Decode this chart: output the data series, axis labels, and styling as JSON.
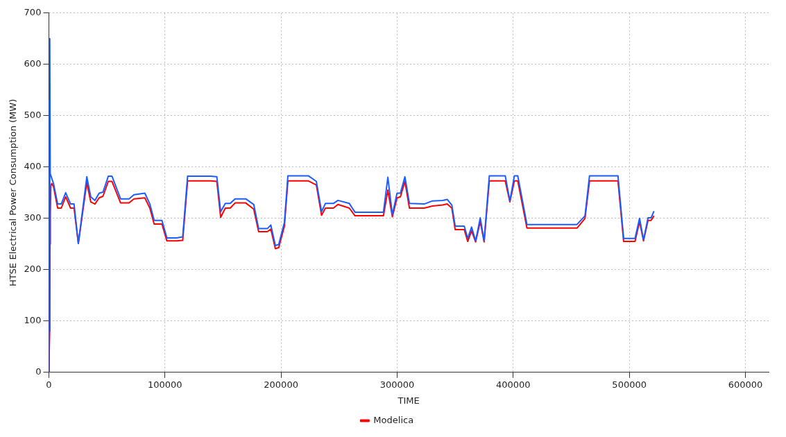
{
  "chart_data": {
    "type": "line",
    "xlabel": "TIME",
    "ylabel": "HTSE Electrical Power Consumption (MW)",
    "xlim": [
      0,
      620000
    ],
    "xticks": [
      0,
      100000,
      200000,
      300000,
      400000,
      500000,
      600000
    ],
    "ylim": [
      0,
      700
    ],
    "yticks": [
      0,
      100,
      200,
      300,
      400,
      500,
      600,
      700
    ],
    "grid": true,
    "legend": "bottom",
    "marker": "none",
    "line_style": "solid",
    "series": [
      {
        "color": "#1a5cff",
        "x": [
          0,
          300,
          600,
          800,
          1200,
          4000,
          7600,
          10700,
          14500,
          18700,
          21700,
          25400,
          32700,
          36100,
          39700,
          43300,
          46600,
          51200,
          54400,
          61800,
          69100,
          73300,
          82700,
          87000,
          90700,
          97400,
          101700,
          110000,
          115300,
          119500,
          139500,
          144700,
          148000,
          152000,
          156200,
          160400,
          169600,
          176500,
          180700,
          188200,
          191200,
          195100,
          198000,
          202900,
          205900,
          223500,
          230400,
          234900,
          238200,
          245100,
          249000,
          258800,
          263700,
          288200,
          292000,
          295900,
          299900,
          302800,
          306700,
          310600,
          323400,
          330400,
          339200,
          343100,
          347100,
          350000,
          357800,
          360800,
          364100,
          367600,
          371600,
          374900,
          379400,
          393100,
          397100,
          401000,
          403900,
          411800,
          454900,
          461800,
          465700,
          490200,
          495100,
          504900,
          508800,
          512200,
          516100,
          518700,
          521200
        ],
        "values": [
          0,
          530,
          80,
          650,
          387,
          368,
          328,
          328,
          350,
          328,
          328,
          251,
          381,
          342,
          335,
          349,
          351,
          382,
          382,
          338,
          338,
          346,
          349,
          328,
          296,
          296,
          262,
          262,
          264,
          382,
          382,
          381,
          313,
          329,
          329,
          338,
          338,
          327,
          280,
          280,
          287,
          247,
          249,
          292,
          383,
          383,
          372,
          313,
          329,
          329,
          335,
          329,
          312,
          312,
          380,
          307,
          349,
          349,
          381,
          329,
          328,
          334,
          335,
          337,
          326,
          285,
          285,
          261,
          283,
          256,
          301,
          256,
          383,
          383,
          334,
          383,
          383,
          288,
          288,
          305,
          383,
          383,
          261,
          261,
          300,
          258,
          301,
          301,
          314
        ]
      },
      {
        "name": "Modelica",
        "color": "#ff0000",
        "x": [
          0,
          700,
          1000,
          1300,
          1700,
          2500,
          4000,
          7600,
          10700,
          14500,
          18700,
          21700,
          25400,
          32700,
          36100,
          39700,
          43300,
          46600,
          51200,
          54400,
          61800,
          69100,
          73300,
          82700,
          87000,
          90700,
          97400,
          101700,
          110000,
          115300,
          119500,
          139500,
          144700,
          148000,
          152000,
          156200,
          160400,
          169600,
          176500,
          180700,
          188200,
          191200,
          195100,
          198000,
          202900,
          205900,
          223500,
          230400,
          234900,
          238200,
          245100,
          249000,
          258800,
          263700,
          288200,
          292000,
          295900,
          299900,
          302800,
          306700,
          310600,
          323400,
          330400,
          339200,
          343100,
          347100,
          350000,
          357800,
          360800,
          364100,
          367600,
          371600,
          374900,
          379400,
          393100,
          397100,
          401000,
          403900,
          411800,
          454900,
          461800,
          465700,
          490200,
          495100,
          504900,
          508800,
          512200,
          516100,
          518700,
          521200
        ],
        "values": [
          0,
          77,
          250,
          310,
          363,
          368,
          362,
          320,
          320,
          342,
          320,
          320,
          251,
          370,
          332,
          328,
          340,
          343,
          372,
          372,
          330,
          330,
          338,
          340,
          320,
          289,
          289,
          256,
          256,
          257,
          373,
          373,
          372,
          302,
          320,
          320,
          330,
          330,
          318,
          274,
          274,
          279,
          241,
          243,
          285,
          373,
          373,
          365,
          306,
          320,
          320,
          327,
          320,
          305,
          305,
          355,
          303,
          340,
          342,
          372,
          320,
          320,
          324,
          326,
          328,
          320,
          278,
          278,
          255,
          276,
          254,
          294,
          254,
          373,
          373,
          332,
          373,
          373,
          281,
          281,
          300,
          373,
          373,
          255,
          255,
          294,
          256,
          296,
          296,
          305
        ]
      }
    ]
  }
}
